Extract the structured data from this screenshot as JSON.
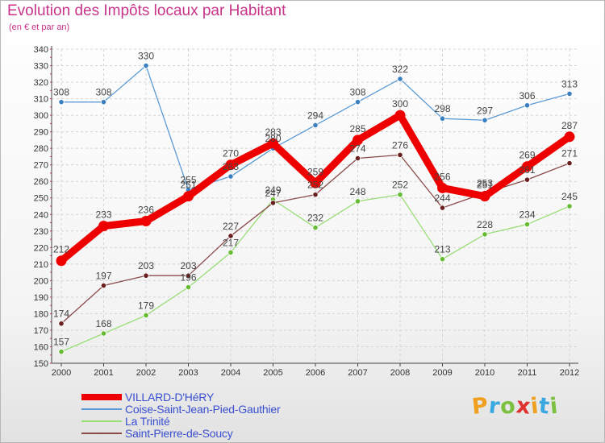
{
  "title": "Evolution des Impôts locaux par Habitant",
  "subtitle": "(en € et par an)",
  "logo": {
    "letters": [
      "P",
      "r",
      "o",
      "x",
      "i",
      "t",
      "i"
    ],
    "colors": [
      "#f0a020",
      "#3aa8e0",
      "#7cc040",
      "#e03030",
      "#f0a020",
      "#3aa8e0",
      "#7cc040"
    ]
  },
  "chart_data": {
    "type": "line",
    "title": "Evolution des Impôts locaux par Habitant",
    "subtitle": "(en € et par an)",
    "xlabel": "",
    "ylabel": "",
    "categories": [
      "2000",
      "2001",
      "2002",
      "2003",
      "2004",
      "2005",
      "2006",
      "2007",
      "2008",
      "2009",
      "2010",
      "2011",
      "2012"
    ],
    "ylim": [
      150,
      340
    ],
    "yticks": [
      150,
      160,
      170,
      180,
      190,
      200,
      210,
      220,
      230,
      240,
      250,
      260,
      270,
      280,
      290,
      300,
      310,
      320,
      330,
      340
    ],
    "grid": true,
    "legend_position": "bottom-left",
    "series": [
      {
        "name": "Coise-Saint-Jean-Pied-Gauthier",
        "color": "#5b9bd5",
        "marker": "#3a7fc0",
        "bold": false,
        "values": [
          308,
          308,
          330,
          255,
          263,
          280,
          294,
          308,
          322,
          298,
          297,
          306,
          313
        ],
        "labels": [
          "308",
          "308",
          "330",
          "255",
          "263",
          "280",
          "294",
          "308",
          "322",
          "298",
          "297",
          "306",
          "313"
        ]
      },
      {
        "name": "La Trinité",
        "color": "#99dd77",
        "marker": "#66bb33",
        "bold": false,
        "values": [
          157,
          168,
          179,
          196,
          217,
          249,
          232,
          248,
          252,
          213,
          228,
          234,
          245
        ],
        "labels": [
          "157",
          "168",
          "179",
          "196",
          "217",
          "249",
          "232",
          "248",
          "252",
          "213",
          "228",
          "234",
          "245"
        ]
      },
      {
        "name": "Saint-Pierre-de-Soucy",
        "color": "#8a4a4a",
        "marker": "#6a1f1f",
        "bold": false,
        "values": [
          174,
          197,
          203,
          203,
          227,
          247,
          252,
          274,
          276,
          244,
          253,
          261,
          271
        ],
        "labels": [
          "174",
          "197",
          "203",
          "203",
          "227",
          "247",
          "252",
          "274",
          "276",
          "244",
          "253",
          "261",
          "271"
        ]
      },
      {
        "name": "VILLARD-D'HéRY",
        "color": "#ee0000",
        "marker": "#ee0000",
        "bold": true,
        "values": [
          212,
          233,
          236,
          251,
          270,
          283,
          259,
          285,
          300,
          256,
          251,
          269,
          287
        ],
        "labels": [
          "212",
          "233",
          "236",
          "251",
          "270",
          "283",
          "259",
          "285",
          "300",
          "256",
          "251",
          "269",
          "287"
        ]
      }
    ],
    "legend": [
      {
        "name": "VILLARD-D'HéRY",
        "color": "#ee0000",
        "bold": true
      },
      {
        "name": "Coise-Saint-Jean-Pied-Gauthier",
        "color": "#5b9bd5",
        "bold": false
      },
      {
        "name": "La Trinité",
        "color": "#99dd77",
        "bold": false
      },
      {
        "name": "Saint-Pierre-de-Soucy",
        "color": "#8a4a4a",
        "bold": false
      }
    ]
  }
}
